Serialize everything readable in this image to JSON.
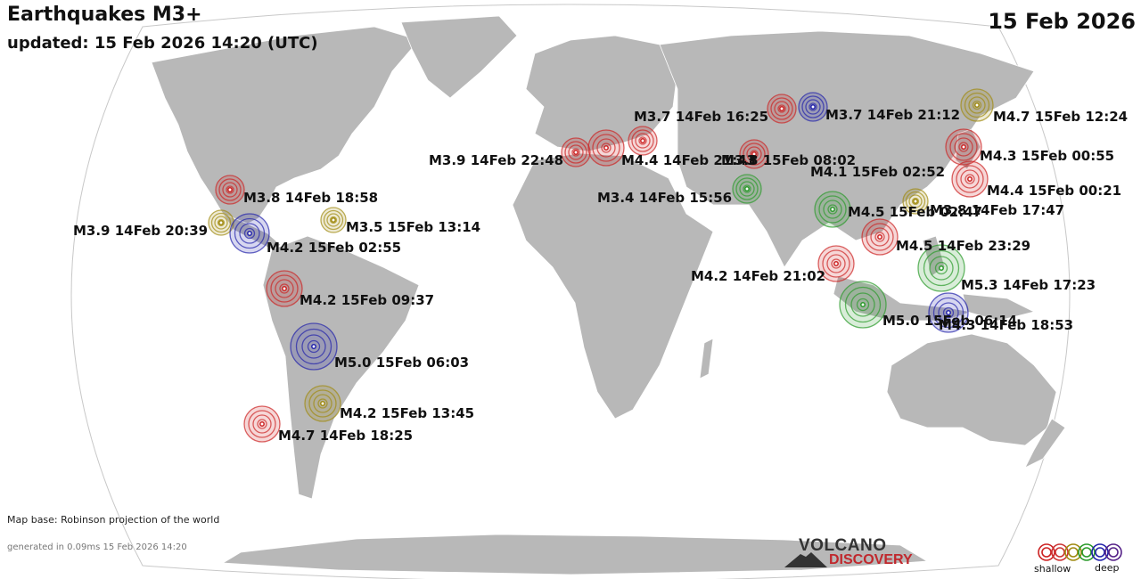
{
  "header": {
    "title": "Earthquakes M3+",
    "updated": "updated: 15 Feb 2026 14:20 (UTC)",
    "date": "15 Feb 2026"
  },
  "footer": {
    "map_credit": "Map base: Robinson projection of the world",
    "generated": "generated in 0.09ms 15 Feb 2026 14:20"
  },
  "logo": {
    "line1": "VOLCANO",
    "line2": "DISCOVERY"
  },
  "legend": {
    "shallow_label": "shallow",
    "deep_label": "deep",
    "depth_colors": [
      "#cc2222",
      "#cc3333",
      "#a08a10",
      "#2a9a2a",
      "#2222aa",
      "#552288"
    ]
  },
  "quakes": [
    {
      "label": "M3.8 14Feb 18:58",
      "depth": "shallow"
    },
    {
      "label": "M3.9 14Feb 20:39",
      "depth": "intermediate"
    },
    {
      "label": "M4.2 15Feb 02:55",
      "depth": "deep"
    },
    {
      "label": "M3.5 15Feb 13:14",
      "depth": "intermediate"
    },
    {
      "label": "M4.2 15Feb 09:37",
      "depth": "shallow"
    },
    {
      "label": "M5.0 15Feb 06:03",
      "depth": "deep"
    },
    {
      "label": "M4.2 15Feb 13:45",
      "depth": "intermediate"
    },
    {
      "label": "M4.7 14Feb 18:25",
      "depth": "shallow"
    },
    {
      "label": "M3.9 14Feb 22:48",
      "depth": "shallow"
    },
    {
      "label": "M4.4 14Feb 21:43",
      "depth": "shallow"
    },
    {
      "label": "M3.7 14Feb 16:25",
      "depth": "shallow"
    },
    {
      "label": "M3.7 14Feb 21:12",
      "depth": "shallow"
    },
    {
      "label": "M3.8 15Feb 08:02",
      "depth": "deep"
    },
    {
      "label": "M3.4 14Feb 15:56",
      "depth": "shallow"
    },
    {
      "label": "M4.1 15Feb 02:52",
      "depth": "medium"
    },
    {
      "label": "M4.5 15Feb 02:47",
      "depth": "medium"
    },
    {
      "label": "M3.8 14Feb 17:47",
      "depth": "intermediate"
    },
    {
      "label": "M4.5 14Feb 23:29",
      "depth": "shallow"
    },
    {
      "label": "M4.2 14Feb 21:02",
      "depth": "shallow"
    },
    {
      "label": "M5.3 14Feb 17:23",
      "depth": "medium"
    },
    {
      "label": "M5.0 15Feb 06:14",
      "depth": "medium"
    },
    {
      "label": "M4.3 14Feb 18:53",
      "depth": "deep"
    },
    {
      "label": "M4.7 15Feb 12:24",
      "depth": "intermediate"
    },
    {
      "label": "M4.3 15Feb 00:55",
      "depth": "shallow"
    },
    {
      "label": "M4.4 15Feb 00:21",
      "depth": "shallow"
    }
  ]
}
